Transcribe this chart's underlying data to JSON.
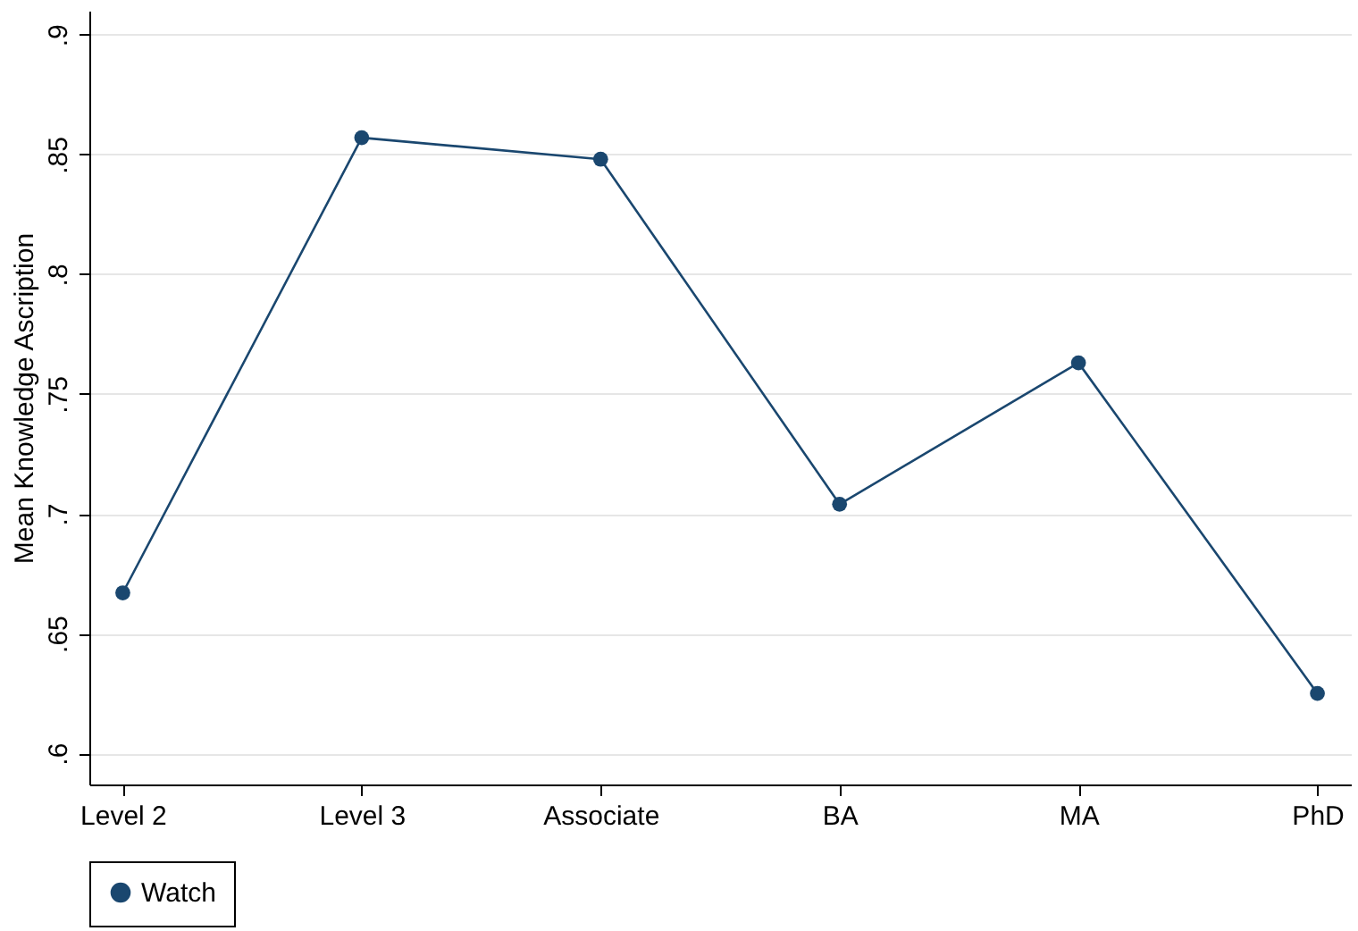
{
  "chart_data": {
    "type": "line",
    "ylabel": "Mean Knowledge Ascription",
    "categories": [
      "Level 2",
      "Level 3",
      "Associate",
      "BA",
      "MA",
      "PhD"
    ],
    "series": [
      {
        "name": "Watch",
        "color": "#1a476f",
        "values": [
          0.667,
          0.857,
          0.848,
          0.704,
          0.763,
          0.625
        ]
      }
    ],
    "ylim": [
      0.587,
      0.91
    ],
    "yticks": [
      {
        "value": 0.6,
        "label": ".6"
      },
      {
        "value": 0.65,
        "label": ".65"
      },
      {
        "value": 0.7,
        "label": ".7"
      },
      {
        "value": 0.75,
        "label": ".75"
      },
      {
        "value": 0.8,
        "label": ".8"
      },
      {
        "value": 0.85,
        "label": ".85"
      },
      {
        "value": 0.9,
        "label": ".9"
      }
    ],
    "grid": "y",
    "legend": "bottom",
    "marker": "circle",
    "line_style": "solid"
  }
}
